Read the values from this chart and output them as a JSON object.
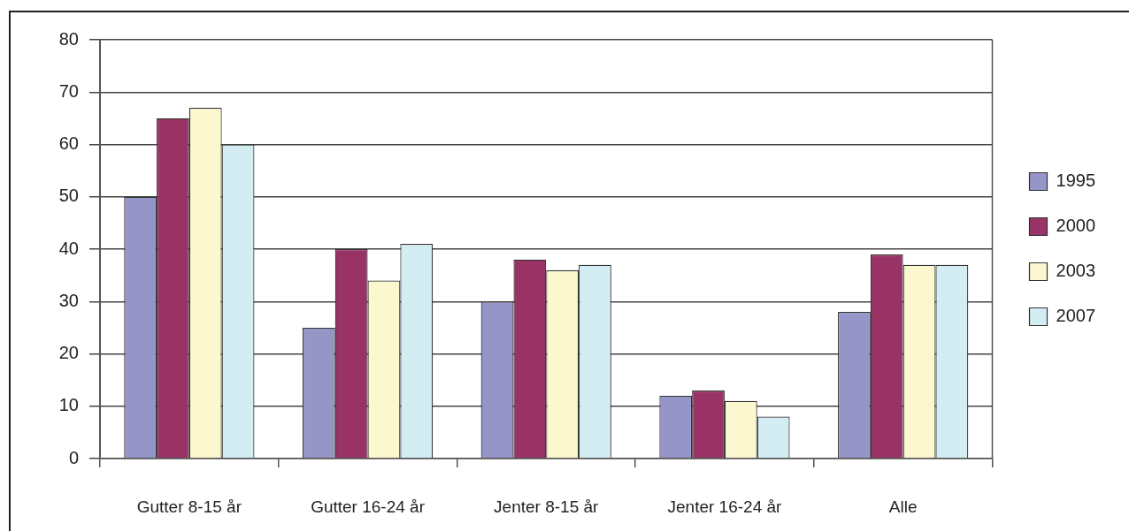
{
  "chart_data": {
    "type": "bar",
    "categories": [
      "Gutter 8-15 år",
      "Gutter 16-24 år",
      "Jenter 8-15 år",
      "Jenter 16-24 år",
      "Alle"
    ],
    "series": [
      {
        "name": "1995",
        "color": "#9595c8",
        "values": [
          50,
          25,
          30,
          12,
          28
        ]
      },
      {
        "name": "2000",
        "color": "#993366",
        "values": [
          65,
          40,
          38,
          13,
          39
        ]
      },
      {
        "name": "2003",
        "color": "#fbf8d0",
        "values": [
          67,
          34,
          36,
          11,
          37
        ]
      },
      {
        "name": "2007",
        "color": "#d3edf3",
        "values": [
          60,
          41,
          37,
          8,
          37
        ]
      }
    ],
    "ylim": [
      0,
      80
    ],
    "yticks": [
      0,
      10,
      20,
      30,
      40,
      50,
      60,
      70,
      80
    ],
    "grid": "y",
    "legend": "right"
  }
}
